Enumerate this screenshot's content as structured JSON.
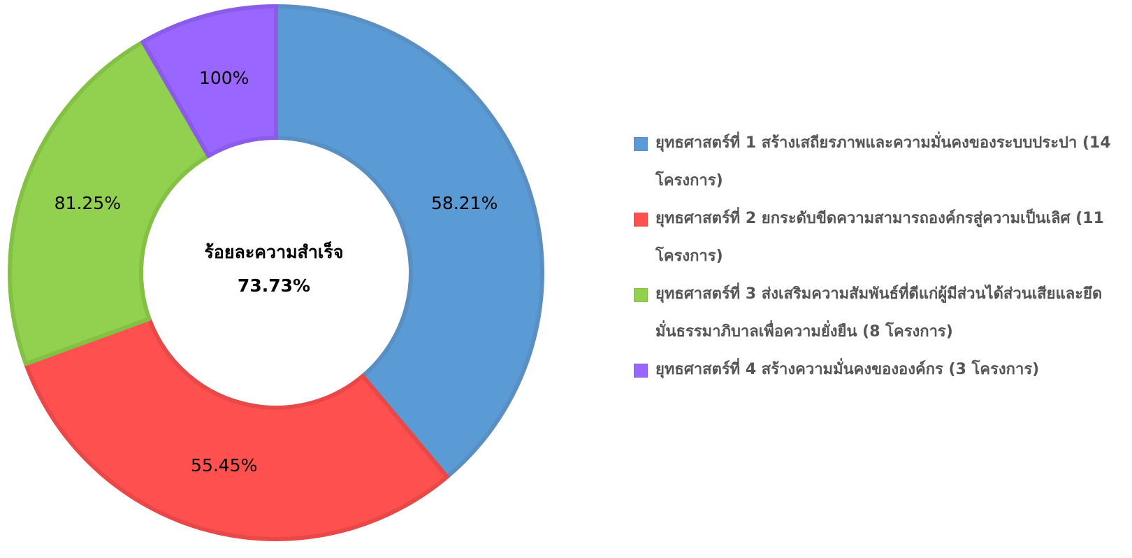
{
  "chart_data": {
    "type": "doughnut",
    "categories": [
      "ยุทธศาสตร์ที่ 1 สร้างเสถียรภาพและความมั่นคงของระบบประปา (14 โครงการ)",
      "ยุทธศาสตร์ที่ 2 ยกระดับขีดความสามารถองค์กรสู่ความเป็นเลิศ (11 โครงการ)",
      "ยุทธศาสตร์ที่ 3 ส่งเสริมความสัมพันธ์ที่ดีแก่ผู้มีส่วนได้ส่วนเสียและยึดมั่นธรรมาภิบาลเพื่อความยั่งยืน (8 โครงการ)",
      "ยุทธศาสตร์ที่ 4 สร้างความมั่นคงขององค์กร (3 โครงการ)"
    ],
    "values": [
      14,
      11,
      8,
      3
    ],
    "rates": [
      58.21,
      55.45,
      81.25,
      100
    ],
    "rate_labels": [
      "58.21%",
      "55.45%",
      "81.25%",
      "100%"
    ],
    "colors": [
      "#5b9bd5",
      "#ff5050",
      "#92d050",
      "#9966ff"
    ],
    "border_colors": [
      "#5a8fc4",
      "#e84848",
      "#84c044",
      "#8a5ce8"
    ],
    "center_title": "ร้อยละความสำเร็จ",
    "center_value": "73.73%",
    "legend": "right"
  }
}
